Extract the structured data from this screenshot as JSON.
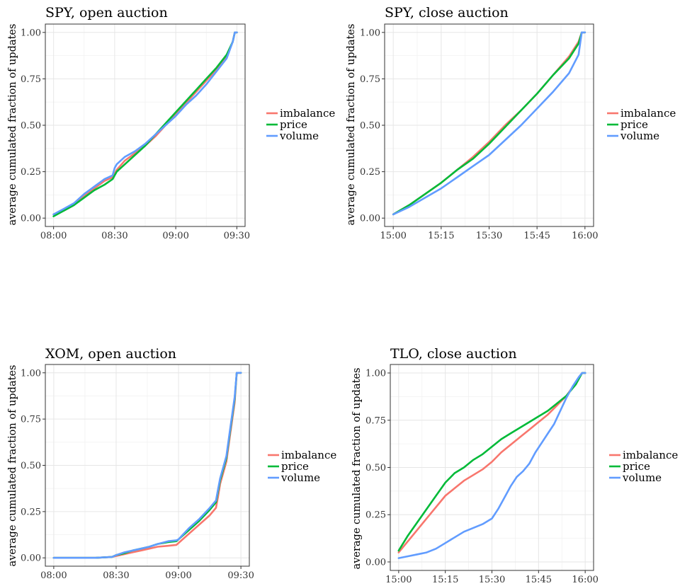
{
  "colors": {
    "imbalance": "#F8766D",
    "price": "#00BA38",
    "volume": "#619CFF"
  },
  "chart_data": [
    {
      "type": "line",
      "title": "SPY, open auction",
      "ylabel": "average cumulated fraction of updates",
      "xlabel": "",
      "xlim": [
        0,
        90
      ],
      "ylim": [
        0,
        1
      ],
      "x_ticks": [
        0,
        30,
        60,
        90
      ],
      "x_tick_labels": [
        "08:00",
        "08:30",
        "09:00",
        "09:30"
      ],
      "y_ticks": [
        0,
        0.25,
        0.5,
        0.75,
        1
      ],
      "y_tick_labels": [
        "0.00",
        "0.25",
        "0.50",
        "0.75",
        "1.00"
      ],
      "legend": [
        "imbalance",
        "price",
        "volume"
      ],
      "series": [
        {
          "name": "imbalance",
          "x": [
            0,
            5,
            10,
            15,
            20,
            25,
            29,
            30,
            31,
            35,
            40,
            45,
            50,
            55,
            60,
            65,
            70,
            75,
            80,
            85,
            88,
            89,
            90
          ],
          "values": [
            0.02,
            0.04,
            0.07,
            0.12,
            0.16,
            0.2,
            0.22,
            0.24,
            0.26,
            0.31,
            0.35,
            0.39,
            0.44,
            0.5,
            0.56,
            0.62,
            0.68,
            0.74,
            0.8,
            0.87,
            0.95,
            1.0,
            1.0
          ]
        },
        {
          "name": "price",
          "x": [
            0,
            5,
            10,
            15,
            20,
            25,
            29,
            30,
            31,
            35,
            40,
            45,
            50,
            55,
            60,
            65,
            70,
            75,
            80,
            85,
            88,
            89,
            90
          ],
          "values": [
            0.01,
            0.04,
            0.07,
            0.11,
            0.15,
            0.18,
            0.21,
            0.23,
            0.25,
            0.29,
            0.34,
            0.39,
            0.45,
            0.51,
            0.57,
            0.63,
            0.69,
            0.75,
            0.81,
            0.88,
            0.95,
            1.0,
            1.0
          ]
        },
        {
          "name": "volume",
          "x": [
            0,
            5,
            10,
            15,
            20,
            25,
            29,
            30,
            31,
            35,
            40,
            45,
            50,
            55,
            60,
            65,
            70,
            75,
            80,
            85,
            88,
            89,
            90
          ],
          "values": [
            0.02,
            0.05,
            0.08,
            0.13,
            0.17,
            0.21,
            0.23,
            0.27,
            0.29,
            0.33,
            0.36,
            0.4,
            0.45,
            0.5,
            0.55,
            0.61,
            0.66,
            0.72,
            0.79,
            0.86,
            0.95,
            1.0,
            1.0
          ]
        }
      ]
    },
    {
      "type": "line",
      "title": "SPY, close auction",
      "ylabel": "average cumulated fraction of updates",
      "xlabel": "",
      "xlim": [
        0,
        60
      ],
      "ylim": [
        0,
        1
      ],
      "x_ticks": [
        0,
        15,
        30,
        45,
        60
      ],
      "x_tick_labels": [
        "15:00",
        "15:15",
        "15:30",
        "15:45",
        "16:00"
      ],
      "y_ticks": [
        0,
        0.25,
        0.5,
        0.75,
        1
      ],
      "y_tick_labels": [
        "0.00",
        "0.25",
        "0.50",
        "0.75",
        "1.00"
      ],
      "legend": [
        "imbalance",
        "price",
        "volume"
      ],
      "series": [
        {
          "name": "imbalance",
          "x": [
            0,
            5,
            10,
            15,
            20,
            25,
            30,
            35,
            40,
            45,
            50,
            55,
            58,
            59,
            60
          ],
          "values": [
            0.02,
            0.07,
            0.13,
            0.19,
            0.26,
            0.33,
            0.41,
            0.5,
            0.58,
            0.67,
            0.77,
            0.87,
            0.95,
            1.0,
            1.0
          ]
        },
        {
          "name": "price",
          "x": [
            0,
            5,
            10,
            15,
            20,
            25,
            30,
            35,
            40,
            45,
            50,
            55,
            58,
            59,
            60
          ],
          "values": [
            0.02,
            0.07,
            0.13,
            0.19,
            0.26,
            0.32,
            0.4,
            0.49,
            0.58,
            0.67,
            0.77,
            0.86,
            0.94,
            1.0,
            1.0
          ]
        },
        {
          "name": "volume",
          "x": [
            0,
            5,
            10,
            15,
            20,
            25,
            30,
            35,
            40,
            45,
            50,
            55,
            58,
            59,
            60
          ],
          "values": [
            0.02,
            0.06,
            0.11,
            0.16,
            0.22,
            0.28,
            0.34,
            0.42,
            0.5,
            0.59,
            0.68,
            0.78,
            0.88,
            1.0,
            1.0
          ]
        }
      ]
    },
    {
      "type": "line",
      "title": "XOM, open auction",
      "ylabel": "average cumulated fraction of updates",
      "xlabel": "",
      "xlim": [
        0,
        90
      ],
      "ylim": [
        0,
        1
      ],
      "x_ticks": [
        0,
        30,
        60,
        90
      ],
      "x_tick_labels": [
        "08:00",
        "08:30",
        "09:00",
        "09:30"
      ],
      "y_ticks": [
        0,
        0.25,
        0.5,
        0.75,
        1
      ],
      "y_tick_labels": [
        "0.00",
        "0.25",
        "0.50",
        "0.75",
        "1.00"
      ],
      "legend": [
        "imbalance",
        "price",
        "volume"
      ],
      "series": [
        {
          "name": "imbalance",
          "x": [
            0,
            10,
            20,
            28,
            30,
            34,
            38,
            42,
            46,
            50,
            55,
            59,
            60,
            65,
            70,
            75,
            78,
            79,
            80,
            83,
            85,
            87,
            88,
            89,
            90
          ],
          "values": [
            0.0,
            0.0,
            0.0,
            0.005,
            0.01,
            0.02,
            0.03,
            0.04,
            0.05,
            0.06,
            0.065,
            0.07,
            0.08,
            0.13,
            0.18,
            0.23,
            0.27,
            0.33,
            0.4,
            0.52,
            0.68,
            0.84,
            1.0,
            1.0,
            1.0
          ]
        },
        {
          "name": "price",
          "x": [
            0,
            10,
            20,
            28,
            30,
            34,
            38,
            42,
            46,
            50,
            55,
            59,
            60,
            65,
            70,
            75,
            78,
            79,
            80,
            83,
            85,
            87,
            88,
            89,
            90
          ],
          "values": [
            0.0,
            0.0,
            0.0,
            0.005,
            0.015,
            0.025,
            0.04,
            0.05,
            0.06,
            0.075,
            0.085,
            0.09,
            0.1,
            0.15,
            0.2,
            0.26,
            0.3,
            0.36,
            0.42,
            0.54,
            0.7,
            0.86,
            1.0,
            1.0,
            1.0
          ]
        },
        {
          "name": "volume",
          "x": [
            0,
            10,
            20,
            28,
            30,
            34,
            38,
            42,
            46,
            50,
            55,
            59,
            60,
            65,
            70,
            75,
            78,
            79,
            80,
            83,
            85,
            87,
            88,
            89,
            90
          ],
          "values": [
            0.0,
            0.0,
            0.0,
            0.005,
            0.015,
            0.03,
            0.04,
            0.05,
            0.06,
            0.075,
            0.09,
            0.095,
            0.1,
            0.16,
            0.21,
            0.27,
            0.31,
            0.37,
            0.43,
            0.55,
            0.71,
            0.87,
            1.0,
            1.0,
            1.0
          ]
        }
      ]
    },
    {
      "type": "line",
      "title": "TLO, close auction",
      "ylabel": "average cumulated fraction of updates",
      "xlabel": "",
      "xlim": [
        0,
        60
      ],
      "ylim": [
        0,
        1
      ],
      "x_ticks": [
        0,
        15,
        30,
        45,
        60
      ],
      "x_tick_labels": [
        "15:00",
        "15:15",
        "15:30",
        "15:45",
        "16:00"
      ],
      "y_ticks": [
        0,
        0.25,
        0.5,
        0.75,
        1
      ],
      "y_tick_labels": [
        "0.00",
        "0.25",
        "0.50",
        "0.75",
        "1.00"
      ],
      "legend": [
        "imbalance",
        "price",
        "volume"
      ],
      "series": [
        {
          "name": "imbalance",
          "x": [
            0,
            3,
            6,
            9,
            12,
            15,
            18,
            21,
            24,
            27,
            30,
            33,
            36,
            39,
            42,
            45,
            48,
            51,
            54,
            57,
            59,
            60
          ],
          "values": [
            0.05,
            0.11,
            0.17,
            0.23,
            0.29,
            0.35,
            0.39,
            0.43,
            0.46,
            0.49,
            0.53,
            0.58,
            0.62,
            0.66,
            0.7,
            0.74,
            0.78,
            0.83,
            0.88,
            0.95,
            1.0,
            1.0
          ]
        },
        {
          "name": "price",
          "x": [
            0,
            3,
            6,
            9,
            12,
            15,
            18,
            21,
            24,
            27,
            30,
            33,
            36,
            39,
            42,
            45,
            48,
            51,
            54,
            57,
            59,
            60
          ],
          "values": [
            0.06,
            0.14,
            0.21,
            0.28,
            0.35,
            0.42,
            0.47,
            0.5,
            0.54,
            0.57,
            0.61,
            0.65,
            0.68,
            0.71,
            0.74,
            0.77,
            0.8,
            0.84,
            0.88,
            0.94,
            1.0,
            1.0
          ]
        },
        {
          "name": "volume",
          "x": [
            0,
            3,
            6,
            9,
            12,
            15,
            18,
            21,
            24,
            27,
            30,
            32,
            34,
            36,
            38,
            40,
            42,
            44,
            46,
            48,
            50,
            52,
            54,
            56,
            58,
            59,
            60
          ],
          "values": [
            0.02,
            0.03,
            0.04,
            0.05,
            0.07,
            0.1,
            0.13,
            0.16,
            0.18,
            0.2,
            0.23,
            0.28,
            0.34,
            0.4,
            0.45,
            0.48,
            0.52,
            0.58,
            0.63,
            0.68,
            0.73,
            0.8,
            0.87,
            0.93,
            0.98,
            1.0,
            1.0
          ]
        }
      ]
    }
  ]
}
